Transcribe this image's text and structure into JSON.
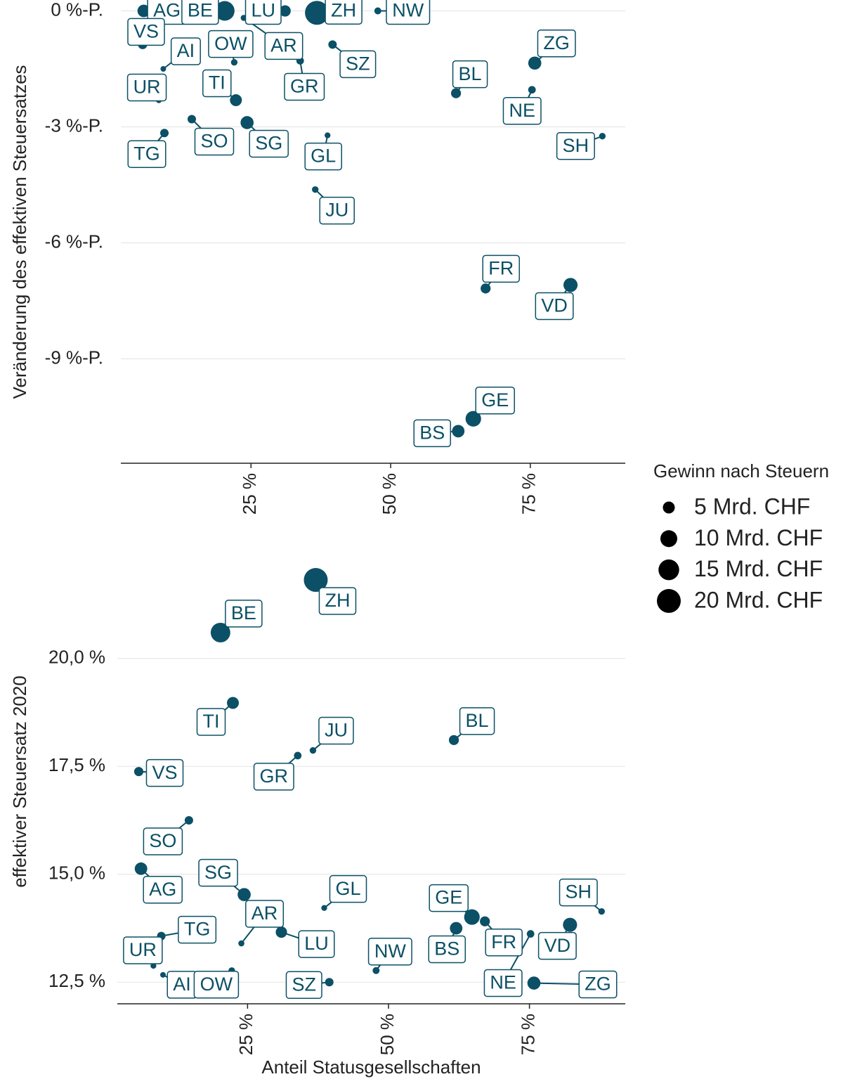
{
  "chart_data": [
    {
      "type": "scatter",
      "y_label": "Veränderung des effektiven Steuersatzes",
      "categories": [
        "AG",
        "BE",
        "LU",
        "ZH",
        "NW",
        "VS",
        "AI",
        "OW",
        "AR",
        "SZ",
        "GR",
        "ZG",
        "BL",
        "NE",
        "UR",
        "TI",
        "TG",
        "SO",
        "SG",
        "GL",
        "SH",
        "JU",
        "FR",
        "VD",
        "GE",
        "BS"
      ],
      "x": [
        5.8,
        20.3,
        31.1,
        36.8,
        47.7,
        5.6,
        9.3,
        22.0,
        23.7,
        39.6,
        33.8,
        75.8,
        61.7,
        75.3,
        8.5,
        22.3,
        9.5,
        14.4,
        24.3,
        38.7,
        87.9,
        36.5,
        67.0,
        82.2,
        64.8,
        62.1
      ],
      "y": [
        0,
        0,
        0,
        -0.05,
        0,
        -0.87,
        -1.5,
        -1.33,
        -0.18,
        -0.87,
        -1.29,
        -1.35,
        -2.13,
        -2.04,
        -2.31,
        -2.31,
        -3.16,
        -2.8,
        -2.89,
        -3.22,
        -3.24,
        -4.62,
        -7.18,
        -7.09,
        -10.55,
        -10.87
      ],
      "sizes": [
        5.5,
        13.5,
        4.5,
        20,
        1.7,
        3,
        1.1,
        1.5,
        1.3,
        2.5,
        2,
        6,
        3.5,
        2,
        1.2,
        5,
        2.5,
        2.5,
        6,
        1.2,
        1.5,
        1.5,
        3.5,
        7,
        8.5,
        5.5
      ],
      "color": "#0b5066",
      "xlim": [
        1.7,
        92.0
      ],
      "ylim": [
        -11.7,
        0.3
      ],
      "xticks": [
        {
          "value": 25,
          "label": "25 %"
        },
        {
          "value": 50,
          "label": "50 %"
        },
        {
          "value": 75,
          "label": "75 %"
        }
      ],
      "yticks": [
        {
          "value": 0,
          "label": "0 %-P."
        },
        {
          "value": -3,
          "label": "-3 %-P."
        },
        {
          "value": -6,
          "label": "-6 %-P."
        },
        {
          "value": -9,
          "label": "-9 %-P."
        }
      ],
      "grid": true,
      "size_legend": {
        "title": "Gewinn nach Steuern",
        "entries": [
          {
            "value": 5,
            "label": "5 Mrd. CHF"
          },
          {
            "value": 10,
            "label": "10 Mrd. CHF"
          },
          {
            "value": 15,
            "label": "15 Mrd. CHF"
          },
          {
            "value": 20,
            "label": "20 Mrd. CHF"
          }
        ]
      }
    },
    {
      "type": "scatter",
      "x_label": "Anteil Statusgesellschaften",
      "y_label": "effektiver Steuersatz 2020",
      "categories": [
        "AG",
        "BE",
        "LU",
        "ZH",
        "NW",
        "VS",
        "AI",
        "OW",
        "AR",
        "SZ",
        "GR",
        "ZG",
        "BL",
        "NE",
        "UR",
        "TI",
        "TG",
        "SO",
        "SG",
        "GL",
        "SH",
        "JU",
        "FR",
        "VD",
        "GE",
        "BS"
      ],
      "x": [
        6.1,
        20.2,
        31.0,
        37.1,
        47.8,
        5.7,
        10.0,
        22.2,
        23.9,
        39.5,
        33.9,
        75.8,
        61.6,
        75.2,
        8.3,
        22.4,
        9.7,
        14.6,
        24.4,
        38.6,
        87.8,
        36.6,
        67.1,
        82.2,
        64.8,
        62.0
      ],
      "y": [
        15.13,
        20.6,
        13.66,
        21.82,
        12.77,
        17.38,
        12.67,
        12.77,
        13.4,
        12.5,
        17.75,
        12.48,
        18.11,
        13.62,
        12.88,
        18.97,
        13.57,
        16.25,
        14.53,
        14.22,
        14.14,
        17.87,
        13.91,
        13.83,
        14.01,
        13.75
      ],
      "sizes": [
        5.5,
        13.5,
        4.5,
        20,
        1.7,
        3,
        1.1,
        1.5,
        1.3,
        2.5,
        2,
        6,
        3.5,
        2,
        1.2,
        5,
        2.5,
        2.5,
        6,
        1.2,
        1.5,
        1.5,
        3.5,
        7,
        8.5,
        5.5
      ],
      "color": "#0b5066",
      "xlim": [
        1.9,
        92.0
      ],
      "ylim": [
        12.0,
        22.4
      ],
      "xticks": [
        {
          "value": 25,
          "label": "25 %"
        },
        {
          "value": 50,
          "label": "50 %"
        },
        {
          "value": 75,
          "label": "75 %"
        }
      ],
      "yticks": [
        {
          "value": 20,
          "label": "20,0 %"
        },
        {
          "value": 17.5,
          "label": "17,5 %"
        },
        {
          "value": 15,
          "label": "15,0 %"
        },
        {
          "value": 12.5,
          "label": "12,5 %"
        }
      ],
      "grid": true
    }
  ]
}
